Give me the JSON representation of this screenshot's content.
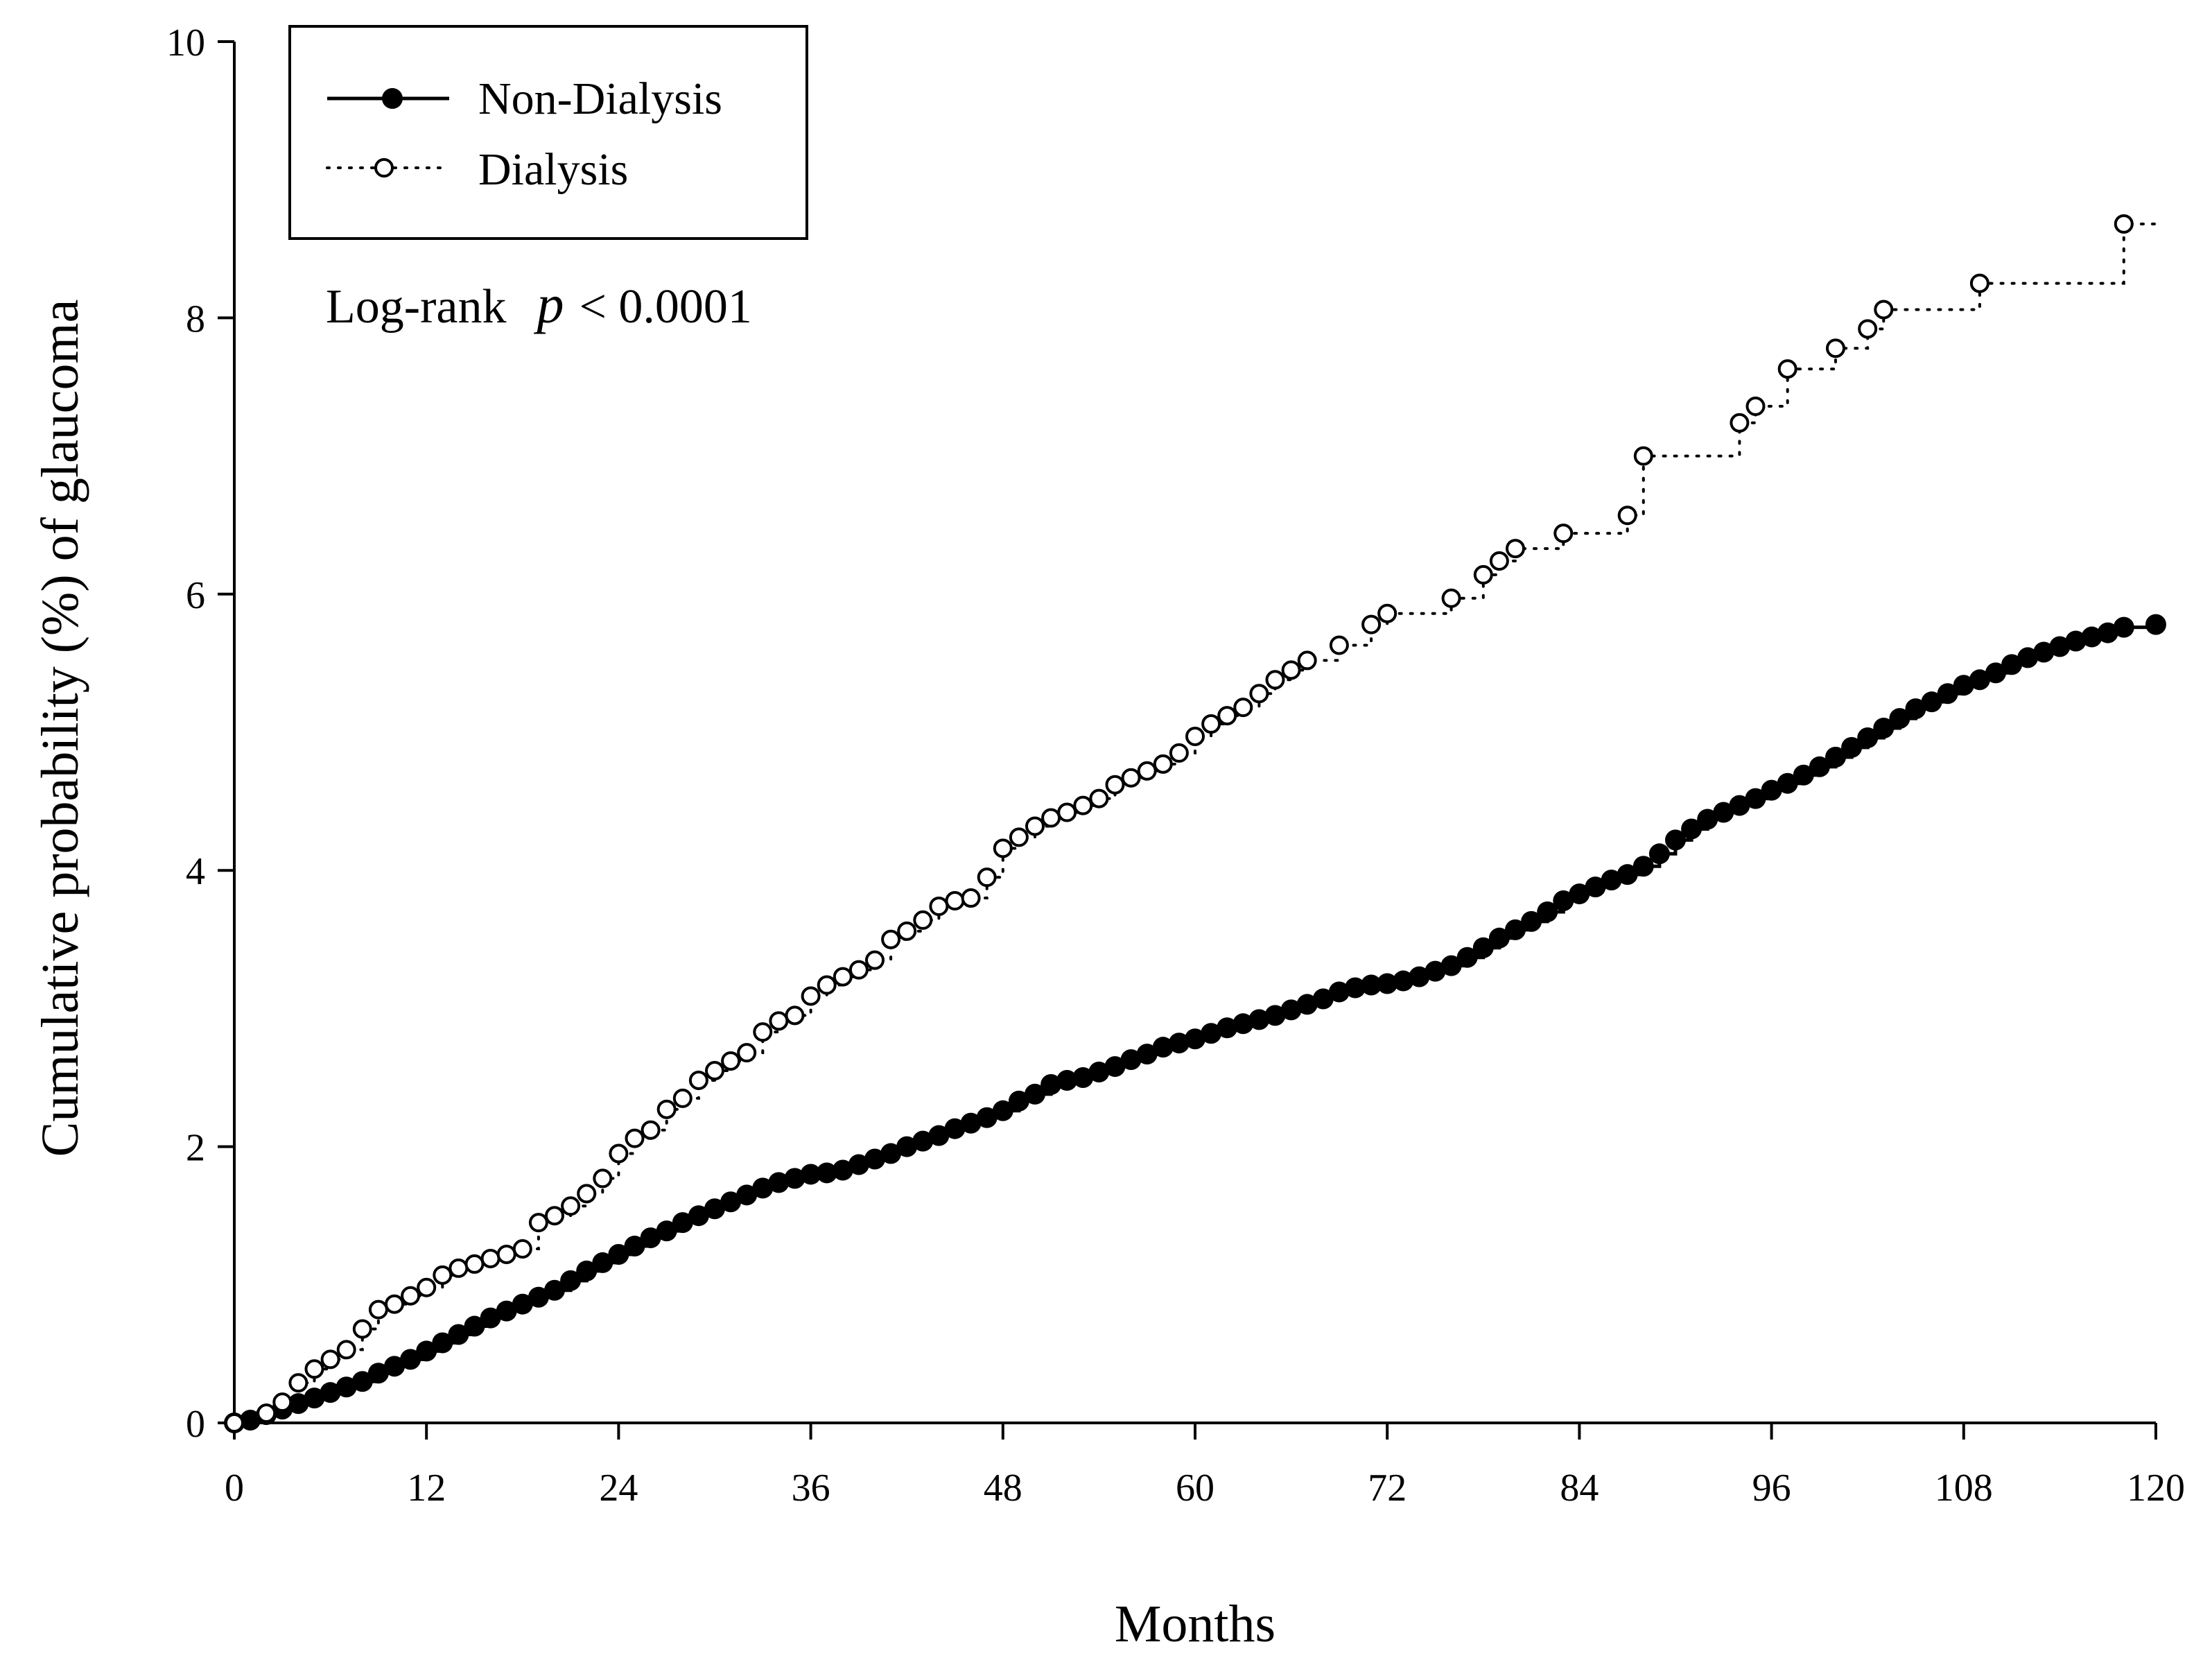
{
  "chart_data": {
    "type": "line",
    "title": "",
    "xlabel": "Months",
    "ylabel": "Cumulative probability (%) of  glaucoma",
    "xlim": [
      0,
      120
    ],
    "ylim": [
      0,
      10
    ],
    "xticks": [
      0,
      12,
      24,
      36,
      48,
      60,
      72,
      84,
      96,
      108,
      120
    ],
    "yticks": [
      0,
      2,
      4,
      6,
      8,
      10
    ],
    "legend_position": "top-left",
    "annotation": {
      "prefix": "Log-rank",
      "p_symbol": "p",
      "suffix": "< 0.0001"
    },
    "series": [
      {
        "name": "Non-Dialysis",
        "style": "solid-filled-markers",
        "color": "#000000",
        "x": [
          0,
          1,
          2,
          3,
          4,
          5,
          6,
          7,
          8,
          9,
          10,
          11,
          12,
          13,
          14,
          15,
          16,
          17,
          18,
          19,
          20,
          21,
          22,
          23,
          24,
          25,
          26,
          27,
          28,
          29,
          30,
          31,
          32,
          33,
          34,
          35,
          36,
          37,
          38,
          39,
          40,
          41,
          42,
          43,
          44,
          45,
          46,
          47,
          48,
          49,
          50,
          51,
          52,
          53,
          54,
          55,
          56,
          57,
          58,
          59,
          60,
          61,
          62,
          63,
          64,
          65,
          66,
          67,
          68,
          69,
          70,
          71,
          72,
          73,
          74,
          75,
          76,
          77,
          78,
          79,
          80,
          81,
          82,
          83,
          84,
          85,
          86,
          87,
          88,
          89,
          90,
          91,
          92,
          93,
          94,
          95,
          96,
          97,
          98,
          99,
          100,
          101,
          102,
          103,
          104,
          105,
          106,
          107,
          108,
          109,
          110,
          111,
          112,
          113,
          114,
          115,
          116,
          117,
          118,
          120
        ],
        "y": [
          0,
          0.02,
          0.06,
          0.1,
          0.14,
          0.18,
          0.22,
          0.26,
          0.3,
          0.36,
          0.41,
          0.46,
          0.52,
          0.58,
          0.64,
          0.7,
          0.76,
          0.81,
          0.86,
          0.91,
          0.96,
          1.03,
          1.1,
          1.16,
          1.22,
          1.28,
          1.34,
          1.39,
          1.45,
          1.5,
          1.55,
          1.6,
          1.65,
          1.7,
          1.74,
          1.77,
          1.8,
          1.81,
          1.83,
          1.87,
          1.91,
          1.95,
          2,
          2.04,
          2.08,
          2.13,
          2.17,
          2.21,
          2.26,
          2.33,
          2.38,
          2.45,
          2.48,
          2.5,
          2.54,
          2.58,
          2.63,
          2.67,
          2.72,
          2.75,
          2.78,
          2.82,
          2.86,
          2.89,
          2.92,
          2.95,
          2.99,
          3.03,
          3.07,
          3.12,
          3.15,
          3.17,
          3.18,
          3.2,
          3.23,
          3.27,
          3.31,
          3.37,
          3.44,
          3.51,
          3.57,
          3.63,
          3.7,
          3.78,
          3.83,
          3.88,
          3.93,
          3.97,
          4.03,
          4.12,
          4.22,
          4.3,
          4.37,
          4.42,
          4.47,
          4.52,
          4.58,
          4.63,
          4.69,
          4.75,
          4.82,
          4.89,
          4.96,
          5.03,
          5.1,
          5.17,
          5.22,
          5.28,
          5.34,
          5.38,
          5.43,
          5.49,
          5.54,
          5.58,
          5.62,
          5.66,
          5.69,
          5.72,
          5.76,
          5.78
        ]
      },
      {
        "name": "Dialysis",
        "style": "dotted-open-markers",
        "color": "#000000",
        "x": [
          0,
          2,
          3,
          4,
          5,
          6,
          7,
          8,
          9,
          10,
          11,
          12,
          13,
          14,
          15,
          16,
          17,
          18,
          19,
          20,
          21,
          22,
          23,
          24,
          25,
          26,
          27,
          28,
          29,
          30,
          31,
          32,
          33,
          34,
          35,
          36,
          37,
          38,
          39,
          40,
          41,
          42,
          43,
          44,
          45,
          46,
          47,
          48,
          49,
          50,
          51,
          52,
          53,
          54,
          55,
          56,
          57,
          58,
          59,
          60,
          61,
          62,
          63,
          64,
          65,
          66,
          67,
          69,
          71,
          72,
          76,
          78,
          79,
          80,
          83,
          87,
          88,
          94,
          95,
          97,
          100,
          102,
          103,
          109,
          118,
          120
        ],
        "y": [
          0,
          0.07,
          0.15,
          0.29,
          0.39,
          0.46,
          0.53,
          0.68,
          0.82,
          0.86,
          0.92,
          0.98,
          1.07,
          1.12,
          1.15,
          1.19,
          1.22,
          1.26,
          1.45,
          1.5,
          1.57,
          1.66,
          1.77,
          1.95,
          2.06,
          2.12,
          2.27,
          2.35,
          2.48,
          2.55,
          2.62,
          2.68,
          2.83,
          2.91,
          2.95,
          3.09,
          3.17,
          3.23,
          3.28,
          3.35,
          3.5,
          3.56,
          3.64,
          3.74,
          3.78,
          3.8,
          3.95,
          4.16,
          4.24,
          4.32,
          4.38,
          4.42,
          4.47,
          4.52,
          4.62,
          4.67,
          4.72,
          4.77,
          4.85,
          4.97,
          5.06,
          5.12,
          5.18,
          5.28,
          5.38,
          5.45,
          5.52,
          5.63,
          5.78,
          5.86,
          5.97,
          6.14,
          6.24,
          6.33,
          6.44,
          6.57,
          7.0,
          7.24,
          7.36,
          7.63,
          7.78,
          7.92,
          8.06,
          8.25,
          8.68,
          8.68
        ]
      }
    ]
  }
}
